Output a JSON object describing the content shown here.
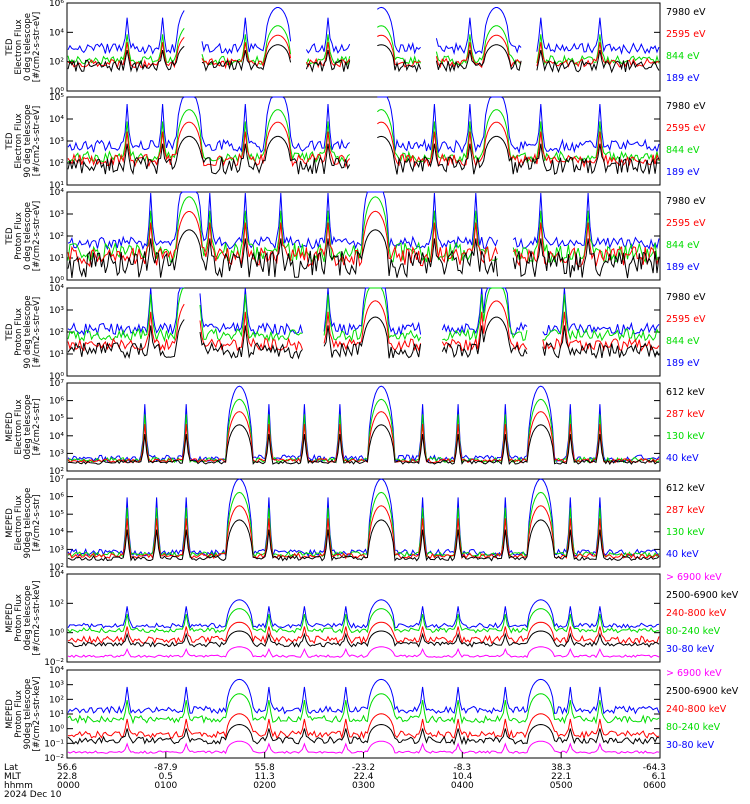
{
  "chart_data": [
    {
      "type": "line",
      "ylabel_lines": [
        "TED",
        "Electron Flux",
        "0 deg telescope",
        "[#/cm2-s-str-eV]"
      ],
      "y_ticks": [
        "10⁶",
        "10⁴",
        "10²",
        "10⁰"
      ],
      "y_log_range": [
        0,
        6
      ],
      "series": [
        {
          "name": "7980 eV",
          "color": "#000000",
          "base": 1.7,
          "noise": 0.4
        },
        {
          "name": "2595 eV",
          "color": "#ff0000",
          "base": 1.9,
          "noise": 0.3
        },
        {
          "name": "844 eV",
          "color": "#00dd00",
          "base": 2.1,
          "noise": 0.3
        },
        {
          "name": "189 eV",
          "color": "#0000ff",
          "base": 2.9,
          "noise": 0.35
        }
      ],
      "passes": [
        0.205,
        0.355,
        0.53,
        0.725
      ],
      "spikes": [
        0.1,
        0.16,
        0.3,
        0.44,
        0.62,
        0.68,
        0.8,
        0.9
      ],
      "pass_peak": 2.8,
      "gaps": [
        [
          0.2,
          0.225
        ],
        [
          0.38,
          0.4
        ],
        [
          0.48,
          0.52
        ],
        [
          0.6,
          0.62
        ],
        [
          0.77,
          0.79
        ]
      ]
    },
    {
      "type": "line",
      "ylabel_lines": [
        "TED",
        "Electron Flux",
        "90 deg telescope",
        "[#/cm2-s-str-eV]"
      ],
      "y_ticks": [
        "10⁵",
        "10⁴",
        "10³",
        "10²",
        "10¹"
      ],
      "y_log_range": [
        0.5,
        5.5
      ],
      "series": [
        {
          "name": "7980 eV",
          "color": "#000000",
          "base": 1.6,
          "noise": 0.5
        },
        {
          "name": "2595 eV",
          "color": "#ff0000",
          "base": 1.9,
          "noise": 0.35
        },
        {
          "name": "844 eV",
          "color": "#00dd00",
          "base": 2.1,
          "noise": 0.3
        },
        {
          "name": "189 eV",
          "color": "#0000ff",
          "base": 2.7,
          "noise": 0.35
        }
      ],
      "passes": [
        0.205,
        0.355,
        0.53,
        0.725
      ],
      "spikes": [
        0.1,
        0.16,
        0.3,
        0.44,
        0.62,
        0.68,
        0.8,
        0.9
      ],
      "pass_peak": 3.2,
      "gaps": [
        [
          0.48,
          0.52
        ]
      ]
    },
    {
      "type": "line",
      "ylabel_lines": [
        "TED",
        "Proton Flux",
        "0 deg telescope",
        "[#/cm2-s-str-eV]"
      ],
      "y_ticks": [
        "10⁴",
        "10³",
        "10²",
        "10¹",
        "10⁰"
      ],
      "y_log_range": [
        0,
        4.5
      ],
      "series": [
        {
          "name": "7980 eV",
          "color": "#000000",
          "base": 0.8,
          "noise": 0.7
        },
        {
          "name": "2595 eV",
          "color": "#ff0000",
          "base": 1.2,
          "noise": 0.5
        },
        {
          "name": "844 eV",
          "color": "#00dd00",
          "base": 1.4,
          "noise": 0.5
        },
        {
          "name": "189 eV",
          "color": "#0000ff",
          "base": 1.9,
          "noise": 0.3
        }
      ],
      "passes": [
        0.205,
        0.52
      ],
      "spikes": [
        0.14,
        0.24,
        0.3,
        0.36,
        0.44,
        0.62,
        0.69,
        0.8,
        0.88
      ],
      "pass_peak": 3.4,
      "gaps": [
        [
          0.73,
          0.75
        ]
      ]
    },
    {
      "type": "line",
      "ylabel_lines": [
        "TED",
        "Proton Flux",
        "90 deg telescope",
        "[#/cm2-s-str-eV]"
      ],
      "y_ticks": [
        "10⁴",
        "10³",
        "10²",
        "10¹",
        "10⁰"
      ],
      "y_log_range": [
        0,
        4.5
      ],
      "series": [
        {
          "name": "7980 eV",
          "color": "#000000",
          "base": 1.3,
          "noise": 0.4
        },
        {
          "name": "2595 eV",
          "color": "#ff0000",
          "base": 1.6,
          "noise": 0.3
        },
        {
          "name": "844 eV",
          "color": "#00dd00",
          "base": 2.1,
          "noise": 0.3
        },
        {
          "name": "189 eV",
          "color": "#0000ff",
          "base": 2.4,
          "noise": 0.3
        }
      ],
      "passes": [
        0.205,
        0.52,
        0.725
      ],
      "spikes": [
        0.14,
        0.3,
        0.44,
        0.62,
        0.7,
        0.84
      ],
      "pass_peak": 3.3,
      "gaps": [
        [
          0.2,
          0.22
        ],
        [
          0.4,
          0.43
        ],
        [
          0.6,
          0.63
        ],
        [
          0.78,
          0.8
        ]
      ]
    },
    {
      "type": "line",
      "ylabel_lines": [
        "MEPED",
        "Electron Flux",
        "0deg telescope",
        "[#/cm2-s-str]"
      ],
      "y_ticks": [
        "10⁷",
        "10⁶",
        "10⁵",
        "10⁴",
        "10³",
        "10²"
      ],
      "y_log_range": [
        1.5,
        7
      ],
      "series": [
        {
          "name": "612 keV",
          "color": "#000000",
          "base": 2.05,
          "noise": 0.12
        },
        {
          "name": "287 keV",
          "color": "#ff0000",
          "base": 2.15,
          "noise": 0.12
        },
        {
          "name": "130 keV",
          "color": "#00dd00",
          "base": 2.2,
          "noise": 0.15
        },
        {
          "name": "40 keV",
          "color": "#0000ff",
          "base": 2.3,
          "noise": 0.2
        }
      ],
      "passes": [
        0.29,
        0.53,
        0.8
      ],
      "spikes": [
        0.13,
        0.2,
        0.34,
        0.4,
        0.46,
        0.6,
        0.66,
        0.74,
        0.85,
        0.9
      ],
      "pass_peak": 4.5,
      "gaps": []
    },
    {
      "type": "line",
      "ylabel_lines": [
        "MEPED",
        "Electron Flux",
        "90deg telescope",
        "[#/cm2-s-str]"
      ],
      "y_ticks": [
        "10⁷",
        "10⁶",
        "10⁵",
        "10⁴",
        "10³",
        "10²"
      ],
      "y_log_range": [
        1.5,
        7
      ],
      "series": [
        {
          "name": "612 keV",
          "color": "#000000",
          "base": 2.05,
          "noise": 0.15
        },
        {
          "name": "287 keV",
          "color": "#ff0000",
          "base": 2.2,
          "noise": 0.15
        },
        {
          "name": "130 keV",
          "color": "#00dd00",
          "base": 2.3,
          "noise": 0.15
        },
        {
          "name": "40 keV",
          "color": "#0000ff",
          "base": 2.4,
          "noise": 0.2
        }
      ],
      "passes": [
        0.29,
        0.53,
        0.8
      ],
      "spikes": [
        0.1,
        0.15,
        0.2,
        0.34,
        0.44,
        0.6,
        0.66,
        0.74,
        0.85,
        0.9
      ],
      "pass_peak": 4.6,
      "gaps": []
    },
    {
      "type": "line",
      "ylabel_lines": [
        "MEPED",
        "Proton Flux",
        "0deg telescope",
        "[#/cm2-s-str-keV]"
      ],
      "y_ticks": [
        "10⁴",
        "10²",
        "10⁰",
        "10⁻²"
      ],
      "y_log_range": [
        -2.5,
        5
      ],
      "series": [
        {
          "name": "> 6900 keV",
          "color": "#ff00ff",
          "base": -2.0,
          "noise": 0.1
        },
        {
          "name": "2500-6900 keV",
          "color": "#000000",
          "base": -1.0,
          "noise": 0.2
        },
        {
          "name": "240-800 keV",
          "color": "#ff0000",
          "base": -0.6,
          "noise": 0.3
        },
        {
          "name": "80-240 keV",
          "color": "#00dd00",
          "base": 0.2,
          "noise": 0.2
        },
        {
          "name": "30-80 keV",
          "color": "#0000ff",
          "base": 0.6,
          "noise": 0.2
        }
      ],
      "passes": [
        0.29,
        0.53,
        0.8
      ],
      "spikes": [
        0.1,
        0.2,
        0.34,
        0.4,
        0.47,
        0.6,
        0.66,
        0.74,
        0.85,
        0.9
      ],
      "pass_peak": 2.2,
      "gaps": []
    },
    {
      "type": "line",
      "ylabel_lines": [
        "MEPED",
        "Proton Flux",
        "90deg telescope",
        "[#/cm2-s-str-keV]"
      ],
      "y_ticks": [
        "10⁴",
        "10³",
        "10²",
        "10¹",
        "10⁰",
        "10⁻¹",
        "10⁻²"
      ],
      "y_log_range": [
        -2.5,
        5
      ],
      "series": [
        {
          "name": "> 6900 keV",
          "color": "#ff00ff",
          "base": -2.0,
          "noise": 0.1
        },
        {
          "name": "2500-6900 keV",
          "color": "#000000",
          "base": -1.0,
          "noise": 0.3
        },
        {
          "name": "240-800 keV",
          "color": "#ff0000",
          "base": -0.5,
          "noise": 0.3
        },
        {
          "name": "80-240 keV",
          "color": "#00dd00",
          "base": 0.8,
          "noise": 0.3
        },
        {
          "name": "30-80 keV",
          "color": "#0000ff",
          "base": 1.6,
          "noise": 0.3
        }
      ],
      "passes": [
        0.29,
        0.53,
        0.8
      ],
      "spikes": [
        0.1,
        0.2,
        0.34,
        0.4,
        0.47,
        0.6,
        0.66,
        0.74,
        0.85,
        0.9
      ],
      "pass_peak": 2.6,
      "gaps": []
    }
  ],
  "footer": {
    "labels": [
      "Lat",
      "MLT",
      "hhmm",
      "2024 Dec 10"
    ],
    "ticks": [
      {
        "lat": "56.6",
        "mlt": "22.8",
        "hhmm": "0000"
      },
      {
        "lat": "-87.9",
        "mlt": "0.5",
        "hhmm": "0100"
      },
      {
        "lat": "55.8",
        "mlt": "11.3",
        "hhmm": "0200"
      },
      {
        "lat": "-23.2",
        "mlt": "22.4",
        "hhmm": "0300"
      },
      {
        "lat": "-8.3",
        "mlt": "10.4",
        "hhmm": "0400"
      },
      {
        "lat": "38.3",
        "mlt": "22.1",
        "hhmm": "0500"
      },
      {
        "lat": "-64.3",
        "mlt": "6.1",
        "hhmm": "0600"
      }
    ]
  }
}
